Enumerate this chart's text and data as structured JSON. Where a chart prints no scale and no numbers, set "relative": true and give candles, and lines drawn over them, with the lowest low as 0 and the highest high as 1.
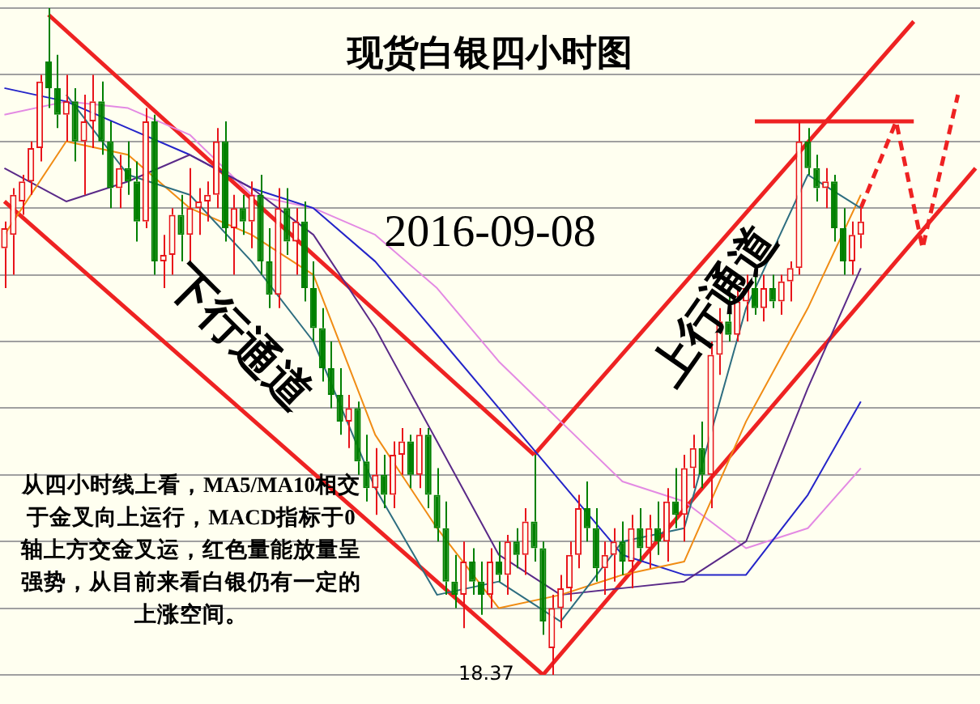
{
  "chart_data": {
    "type": "candlestick",
    "relative": true,
    "grid": true,
    "title": "现货白银四小时图",
    "subtitle": "2016-09-08",
    "annotations": [
      "下行通道",
      "上行通道",
      "从四小时线上看，MA5/MA10相交于金叉向上运行，MACD指标于0轴上方交金叉运，红色量能放量呈强势，从目前来看白银仍有一定的上涨空间。",
      "18.37"
    ],
    "categories": [
      null,
      null,
      null,
      null,
      null,
      null,
      null,
      null,
      null,
      null,
      null,
      null,
      null,
      null,
      null,
      null,
      null,
      null,
      null,
      null,
      null,
      null,
      null,
      null,
      null,
      null,
      null,
      null,
      null,
      null,
      null,
      null,
      null,
      null,
      null,
      null,
      null,
      null,
      null,
      null,
      null,
      null,
      null,
      null,
      null,
      null,
      null,
      null,
      null,
      null,
      null,
      null,
      null,
      null,
      null,
      null,
      null,
      null,
      null,
      null,
      null,
      null,
      null,
      null,
      null,
      null,
      null,
      null,
      null,
      null,
      null,
      null,
      null,
      null,
      null,
      null,
      null,
      null,
      null,
      null,
      null,
      null,
      null,
      null,
      null,
      null,
      null,
      null,
      null,
      null,
      null,
      null,
      null,
      null,
      null,
      null,
      null,
      null,
      null,
      null,
      null,
      null,
      null,
      null,
      null,
      null,
      null,
      null,
      null,
      null,
      null
    ],
    "ohlc": [
      [
        0.64,
        0.68,
        0.58,
        0.67
      ],
      [
        0.66,
        0.73,
        0.6,
        0.72
      ],
      [
        0.71,
        0.75,
        0.69,
        0.74
      ],
      [
        0.74,
        0.8,
        0.72,
        0.79
      ],
      [
        0.79,
        0.9,
        0.77,
        0.89
      ],
      [
        0.92,
        1.0,
        0.85,
        0.88
      ],
      [
        0.88,
        0.93,
        0.82,
        0.84
      ],
      [
        0.84,
        0.9,
        0.8,
        0.86
      ],
      [
        0.86,
        0.88,
        0.77,
        0.8
      ],
      [
        0.8,
        0.87,
        0.72,
        0.83
      ],
      [
        0.83,
        0.9,
        0.79,
        0.86
      ],
      [
        0.86,
        0.89,
        0.78,
        0.8
      ],
      [
        0.8,
        0.83,
        0.7,
        0.73
      ],
      [
        0.73,
        0.78,
        0.7,
        0.76
      ],
      [
        0.76,
        0.8,
        0.72,
        0.74
      ],
      [
        0.74,
        0.77,
        0.65,
        0.68
      ],
      [
        0.68,
        0.85,
        0.67,
        0.83
      ],
      [
        0.83,
        0.84,
        0.6,
        0.62
      ],
      [
        0.62,
        0.66,
        0.58,
        0.63
      ],
      [
        0.63,
        0.7,
        0.6,
        0.69
      ],
      [
        0.69,
        0.72,
        0.62,
        0.66
      ],
      [
        0.66,
        0.76,
        0.62,
        0.7
      ],
      [
        0.7,
        0.73,
        0.66,
        0.71
      ],
      [
        0.71,
        0.74,
        0.68,
        0.72
      ],
      [
        0.72,
        0.82,
        0.7,
        0.8
      ],
      [
        0.8,
        0.83,
        0.65,
        0.67
      ],
      [
        0.67,
        0.72,
        0.6,
        0.7
      ],
      [
        0.7,
        0.72,
        0.66,
        0.68
      ],
      [
        0.68,
        0.74,
        0.64,
        0.72
      ],
      [
        0.72,
        0.75,
        0.6,
        0.62
      ],
      [
        0.62,
        0.67,
        0.55,
        0.57
      ],
      [
        0.57,
        0.73,
        0.55,
        0.7
      ],
      [
        0.7,
        0.73,
        0.63,
        0.65
      ],
      [
        0.65,
        0.7,
        0.6,
        0.68
      ],
      [
        0.68,
        0.71,
        0.56,
        0.58
      ],
      [
        0.58,
        0.62,
        0.5,
        0.52
      ],
      [
        0.52,
        0.55,
        0.44,
        0.46
      ],
      [
        0.46,
        0.5,
        0.4,
        0.42
      ],
      [
        0.42,
        0.46,
        0.36,
        0.38
      ],
      [
        0.38,
        0.42,
        0.34,
        0.4
      ],
      [
        0.4,
        0.41,
        0.3,
        0.32
      ],
      [
        0.32,
        0.36,
        0.26,
        0.28
      ],
      [
        0.28,
        0.34,
        0.24,
        0.3
      ],
      [
        0.3,
        0.33,
        0.25,
        0.27
      ],
      [
        0.27,
        0.35,
        0.25,
        0.33
      ],
      [
        0.33,
        0.37,
        0.3,
        0.35
      ],
      [
        0.35,
        0.36,
        0.28,
        0.3
      ],
      [
        0.3,
        0.37,
        0.28,
        0.36
      ],
      [
        0.36,
        0.37,
        0.25,
        0.27
      ],
      [
        0.27,
        0.31,
        0.2,
        0.22
      ],
      [
        0.22,
        0.26,
        0.12,
        0.14
      ],
      [
        0.14,
        0.18,
        0.1,
        0.12
      ],
      [
        0.12,
        0.2,
        0.07,
        0.17
      ],
      [
        0.17,
        0.19,
        0.12,
        0.14
      ],
      [
        0.14,
        0.17,
        0.09,
        0.12
      ],
      [
        0.12,
        0.19,
        0.1,
        0.17
      ],
      [
        0.17,
        0.2,
        0.14,
        0.15
      ],
      [
        0.15,
        0.21,
        0.12,
        0.2
      ],
      [
        0.2,
        0.22,
        0.16,
        0.18
      ],
      [
        0.18,
        0.25,
        0.15,
        0.23
      ],
      [
        0.23,
        0.33,
        0.17,
        0.19
      ],
      [
        0.19,
        0.2,
        0.06,
        0.08
      ],
      [
        0.04,
        0.12,
        0,
        0.1
      ],
      [
        0.1,
        0.15,
        0.07,
        0.13
      ],
      [
        0.13,
        0.2,
        0.11,
        0.18
      ],
      [
        0.18,
        0.27,
        0.16,
        0.25
      ],
      [
        0.25,
        0.29,
        0.2,
        0.22
      ],
      [
        0.22,
        0.25,
        0.14,
        0.16
      ],
      [
        0.16,
        0.2,
        0.12,
        0.18
      ],
      [
        0.18,
        0.22,
        0.14,
        0.2
      ],
      [
        0.2,
        0.23,
        0.15,
        0.17
      ],
      [
        0.17,
        0.24,
        0.13,
        0.22
      ],
      [
        0.22,
        0.25,
        0.17,
        0.19
      ],
      [
        0.19,
        0.24,
        0.16,
        0.22
      ],
      [
        0.22,
        0.26,
        0.18,
        0.2
      ],
      [
        0.2,
        0.28,
        0.17,
        0.26
      ],
      [
        0.26,
        0.31,
        0.22,
        0.24
      ],
      [
        0.24,
        0.33,
        0.2,
        0.31
      ],
      [
        0.31,
        0.36,
        0.28,
        0.34
      ],
      [
        0.34,
        0.38,
        0.28,
        0.3
      ],
      [
        0.3,
        0.5,
        0.25,
        0.48
      ],
      [
        0.48,
        0.55,
        0.45,
        0.53
      ],
      [
        0.53,
        0.58,
        0.5,
        0.51
      ],
      [
        0.51,
        0.58,
        0.5,
        0.56
      ],
      [
        0.56,
        0.6,
        0.53,
        0.58
      ],
      [
        0.58,
        0.6,
        0.54,
        0.55
      ],
      [
        0.55,
        0.6,
        0.53,
        0.58
      ],
      [
        0.58,
        0.6,
        0.55,
        0.56
      ],
      [
        0.56,
        0.6,
        0.54,
        0.59
      ],
      [
        0.59,
        0.62,
        0.56,
        0.61
      ],
      [
        0.61,
        0.83,
        0.6,
        0.8
      ],
      [
        0.8,
        0.82,
        0.75,
        0.76
      ],
      [
        0.76,
        0.78,
        0.71,
        0.73
      ],
      [
        0.73,
        0.76,
        0.7,
        0.74
      ],
      [
        0.74,
        0.75,
        0.65,
        0.67
      ],
      [
        0.67,
        0.7,
        0.6,
        0.62
      ],
      [
        0.62,
        0.68,
        0.6,
        0.66
      ],
      [
        0.66,
        0.7,
        0.64,
        0.68
      ],
      null,
      null,
      null,
      null,
      null,
      null,
      null,
      null,
      null,
      null,
      null,
      null,
      null
    ],
    "colors": [
      "#e8141a",
      "#e8141a",
      "#e8141a",
      "#e8141a",
      "#e8141a",
      "#008000",
      "#008000",
      "#e8141a",
      "#008000",
      "#e8141a",
      "#e8141a",
      "#008000",
      "#008000",
      "#e8141a",
      "#008000",
      "#008000",
      "#e8141a",
      "#008000",
      "#e8141a",
      "#e8141a",
      "#008000",
      "#e8141a",
      "#e8141a",
      "#e8141a",
      "#e8141a",
      "#008000",
      "#e8141a",
      "#008000",
      "#e8141a",
      "#008000",
      "#008000",
      "#e8141a",
      "#008000",
      "#e8141a",
      "#008000",
      "#008000",
      "#008000",
      "#008000",
      "#008000",
      "#e8141a",
      "#008000",
      "#008000",
      "#e8141a",
      "#008000",
      "#e8141a",
      "#e8141a",
      "#008000",
      "#e8141a",
      "#008000",
      "#008000",
      "#008000",
      "#008000",
      "#e8141a",
      "#008000",
      "#008000",
      "#e8141a",
      "#008000",
      "#e8141a",
      "#008000",
      "#e8141a",
      "#008000",
      "#008000",
      "#e8141a",
      "#e8141a",
      "#e8141a",
      "#e8141a",
      "#008000",
      "#008000",
      "#e8141a",
      "#e8141a",
      "#008000",
      "#e8141a",
      "#008000",
      "#e8141a",
      "#008000",
      "#e8141a",
      "#008000",
      "#e8141a",
      "#e8141a",
      "#008000",
      "#e8141a",
      "#e8141a",
      "#008000",
      "#e8141a",
      "#e8141a",
      "#008000",
      "#e8141a",
      "#008000",
      "#e8141a",
      "#e8141a",
      "#e8141a",
      "#008000",
      "#008000",
      "#e8141a",
      "#008000",
      "#008000",
      "#e8141a",
      "#e8141a",
      null,
      null,
      null,
      null,
      null,
      null,
      null,
      null,
      null,
      null,
      null,
      null,
      null
    ],
    "series": [
      {
        "type": "line",
        "color": "#2e6e80",
        "values": [
          null,
          null,
          null,
          null,
          null,
          null,
          null,
          0.87,
          null,
          null,
          null,
          null,
          null,
          null,
          0.75,
          null,
          null,
          null,
          null,
          null,
          null,
          0.72,
          null,
          null,
          null,
          null,
          null,
          null,
          0.62,
          null,
          null,
          null,
          null,
          null,
          null,
          0.5,
          null,
          null,
          null,
          null,
          null,
          null,
          0.28,
          null,
          null,
          null,
          null,
          null,
          null,
          0.12,
          null,
          null,
          null,
          null,
          null,
          null,
          0.14,
          null,
          null,
          null,
          null,
          null,
          null,
          0.08,
          null,
          null,
          null,
          null,
          null,
          null,
          0.2,
          null,
          null,
          null,
          null,
          null,
          null,
          0.22,
          null,
          null,
          null,
          null,
          null,
          null,
          0.55,
          null,
          null,
          null,
          null,
          null,
          null,
          0.75,
          null,
          null,
          null,
          null,
          null,
          0.7,
          null,
          null,
          null,
          null,
          null,
          null,
          null,
          null,
          null,
          null,
          null,
          null,
          null
        ]
      },
      {
        "type": "line",
        "color": "#f08c14",
        "values": [
          0.66,
          null,
          null,
          null,
          null,
          null,
          null,
          0.8,
          null,
          null,
          null,
          null,
          null,
          null,
          0.78,
          null,
          null,
          null,
          null,
          null,
          null,
          0.7,
          null,
          null,
          null,
          null,
          null,
          null,
          0.66,
          null,
          null,
          null,
          null,
          null,
          null,
          0.6,
          null,
          null,
          null,
          null,
          null,
          null,
          0.36,
          null,
          null,
          null,
          null,
          null,
          null,
          0.22,
          null,
          null,
          null,
          null,
          null,
          null,
          0.1,
          null,
          null,
          null,
          null,
          null,
          null,
          0.12,
          null,
          null,
          null,
          null,
          null,
          null,
          0.15,
          null,
          null,
          null,
          null,
          null,
          null,
          0.17,
          null,
          null,
          null,
          null,
          null,
          null,
          0.38,
          null,
          null,
          null,
          null,
          null,
          null,
          0.55,
          null,
          null,
          null,
          null,
          null,
          0.72,
          null,
          null,
          null,
          null,
          null,
          null,
          null,
          null,
          null,
          null,
          null,
          null,
          null
        ]
      },
      {
        "type": "line",
        "color": "#5a2a88",
        "values": [
          0.76,
          null,
          null,
          null,
          null,
          null,
          null,
          0.71,
          null,
          null,
          null,
          null,
          null,
          null,
          0.74,
          null,
          null,
          null,
          null,
          null,
          null,
          0.78,
          null,
          null,
          null,
          null,
          null,
          null,
          0.73,
          null,
          null,
          null,
          null,
          null,
          null,
          0.66,
          null,
          null,
          null,
          null,
          null,
          null,
          0.52,
          null,
          null,
          null,
          null,
          null,
          null,
          0.35,
          null,
          null,
          null,
          null,
          null,
          null,
          0.18,
          null,
          null,
          null,
          null,
          null,
          null,
          0.12,
          null,
          null,
          null,
          null,
          null,
          null,
          0.13,
          null,
          null,
          null,
          null,
          null,
          null,
          0.14,
          null,
          null,
          null,
          null,
          null,
          null,
          0.2,
          null,
          null,
          null,
          null,
          null,
          null,
          0.43,
          null,
          null,
          null,
          null,
          null,
          0.61,
          null,
          null,
          null,
          null,
          null,
          null,
          null,
          null,
          null,
          null,
          null,
          null,
          null
        ]
      },
      {
        "type": "line",
        "color": "#2424c8",
        "values": [
          0.88,
          null,
          null,
          null,
          null,
          null,
          null,
          0.86,
          null,
          null,
          null,
          null,
          null,
          null,
          0.82,
          null,
          null,
          null,
          null,
          null,
          null,
          0.78,
          null,
          null,
          null,
          null,
          null,
          null,
          0.73,
          null,
          null,
          null,
          null,
          null,
          null,
          0.7,
          null,
          null,
          null,
          null,
          null,
          null,
          0.62,
          null,
          null,
          null,
          null,
          null,
          null,
          0.51,
          null,
          null,
          null,
          null,
          null,
          null,
          0.4,
          null,
          null,
          null,
          null,
          null,
          null,
          0.29,
          null,
          null,
          null,
          null,
          null,
          null,
          0.18,
          null,
          null,
          null,
          null,
          null,
          null,
          0.15,
          null,
          null,
          null,
          null,
          null,
          null,
          0.15,
          null,
          null,
          null,
          null,
          null,
          null,
          0.27,
          null,
          null,
          null,
          null,
          null,
          0.41,
          null,
          null,
          null,
          null,
          null,
          null,
          null,
          null,
          null,
          null,
          null,
          null,
          null
        ]
      },
      {
        "type": "line",
        "color": "#e38ae3",
        "values": [
          0.84,
          null,
          null,
          null,
          null,
          null,
          null,
          0.86,
          null,
          null,
          null,
          null,
          null,
          null,
          0.85,
          null,
          null,
          null,
          null,
          null,
          null,
          0.81,
          null,
          null,
          null,
          null,
          null,
          null,
          0.72,
          null,
          null,
          null,
          null,
          null,
          null,
          0.7,
          null,
          null,
          null,
          null,
          null,
          null,
          0.66,
          null,
          null,
          null,
          null,
          null,
          null,
          0.58,
          null,
          null,
          null,
          null,
          null,
          null,
          0.47,
          null,
          null,
          null,
          null,
          null,
          null,
          0.38,
          null,
          null,
          null,
          null,
          null,
          null,
          0.29,
          null,
          null,
          null,
          null,
          null,
          null,
          0.26,
          null,
          null,
          null,
          null,
          null,
          null,
          0.19,
          null,
          null,
          null,
          null,
          null,
          null,
          0.22,
          null,
          null,
          null,
          null,
          null,
          0.31,
          null,
          null,
          null,
          null,
          null,
          null,
          null,
          null,
          null,
          null,
          null,
          null,
          null
        ]
      },
      {
        "type": "line",
        "color": "#ee2222",
        "values": [
          null,
          null,
          null,
          null,
          null,
          0.99,
          null,
          null,
          null,
          null,
          null,
          null,
          null,
          null,
          null,
          null,
          null,
          null,
          null,
          null,
          null,
          null,
          null,
          null,
          null,
          null,
          null,
          null,
          null,
          null,
          null,
          null,
          null,
          null,
          null,
          null,
          null,
          null,
          null,
          null,
          null,
          null,
          null,
          null,
          null,
          null,
          null,
          null,
          null,
          null,
          null,
          null,
          null,
          null,
          null,
          null,
          null,
          null,
          null,
          null,
          0.33,
          null,
          null,
          null,
          null,
          null,
          null,
          null,
          null,
          null,
          null,
          null,
          null,
          null,
          null,
          null,
          null,
          null,
          null,
          null,
          null,
          null,
          null,
          null,
          null,
          null,
          null,
          null,
          null,
          null,
          null,
          null,
          null,
          null,
          null,
          null,
          null,
          null,
          null,
          null,
          null,
          null,
          null,
          null,
          null,
          null,
          null,
          null,
          null,
          null,
          null
        ]
      },
      {
        "type": "line",
        "color": "#ee2222",
        "values": [
          0.71,
          null,
          null,
          null,
          null,
          null,
          null,
          null,
          null,
          null,
          null,
          null,
          null,
          null,
          null,
          null,
          null,
          null,
          null,
          null,
          null,
          null,
          null,
          null,
          null,
          null,
          null,
          null,
          null,
          null,
          null,
          null,
          null,
          null,
          null,
          null,
          null,
          null,
          null,
          null,
          null,
          null,
          null,
          null,
          null,
          null,
          null,
          null,
          null,
          null,
          null,
          null,
          null,
          null,
          null,
          null,
          null,
          null,
          null,
          null,
          null,
          0,
          null,
          null,
          null,
          null,
          null,
          null,
          null,
          null,
          null,
          null,
          null,
          null,
          null,
          null,
          null,
          null,
          null,
          null,
          null,
          null,
          null,
          null,
          null,
          null,
          null,
          null,
          null,
          null,
          null,
          null,
          null,
          null,
          null,
          null,
          null,
          null,
          null,
          null,
          null,
          null,
          null,
          null,
          null,
          null,
          null,
          null,
          null,
          null,
          null
        ]
      },
      {
        "type": "line",
        "color": "#ee2222",
        "values": [
          null,
          null,
          null,
          null,
          null,
          null,
          null,
          null,
          null,
          null,
          null,
          null,
          null,
          null,
          null,
          null,
          null,
          null,
          null,
          null,
          null,
          null,
          null,
          null,
          null,
          null,
          null,
          null,
          null,
          null,
          null,
          null,
          null,
          null,
          null,
          null,
          null,
          null,
          null,
          null,
          null,
          null,
          null,
          null,
          null,
          null,
          null,
          null,
          null,
          null,
          null,
          null,
          null,
          null,
          null,
          null,
          null,
          null,
          null,
          null,
          0.33,
          null,
          null,
          null,
          null,
          null,
          null,
          null,
          null,
          null,
          null,
          null,
          null,
          null,
          null,
          null,
          null,
          null,
          null,
          null,
          null,
          null,
          null,
          null,
          null,
          null,
          null,
          null,
          null,
          null,
          null,
          null,
          null,
          null,
          null,
          null,
          null,
          null,
          null,
          null,
          null,
          null,
          null,
          0.98,
          null,
          null,
          null,
          null,
          null,
          null,
          null
        ]
      },
      {
        "type": "line",
        "color": "#ee2222",
        "values": [
          null,
          null,
          null,
          null,
          null,
          null,
          null,
          null,
          null,
          null,
          null,
          null,
          null,
          null,
          null,
          null,
          null,
          null,
          null,
          null,
          null,
          null,
          null,
          null,
          null,
          null,
          null,
          null,
          null,
          null,
          null,
          null,
          null,
          null,
          null,
          null,
          null,
          null,
          null,
          null,
          null,
          null,
          null,
          null,
          null,
          null,
          null,
          null,
          null,
          null,
          null,
          null,
          null,
          null,
          null,
          null,
          null,
          null,
          null,
          null,
          null,
          0,
          null,
          null,
          null,
          null,
          null,
          null,
          null,
          null,
          null,
          null,
          null,
          null,
          null,
          null,
          null,
          null,
          null,
          null,
          null,
          null,
          null,
          null,
          null,
          null,
          null,
          null,
          null,
          null,
          null,
          null,
          null,
          null,
          null,
          null,
          null,
          null,
          null,
          null,
          null,
          null,
          null,
          null,
          null,
          null,
          null,
          null,
          null,
          null,
          0.76
        ]
      },
      {
        "type": "line",
        "color": "#ee2222",
        "values": [
          null,
          null,
          null,
          null,
          null,
          null,
          null,
          null,
          null,
          null,
          null,
          null,
          null,
          null,
          null,
          null,
          null,
          null,
          null,
          null,
          null,
          null,
          null,
          null,
          null,
          null,
          null,
          null,
          null,
          null,
          null,
          null,
          null,
          null,
          null,
          null,
          null,
          null,
          null,
          null,
          null,
          null,
          null,
          null,
          null,
          null,
          null,
          null,
          null,
          null,
          null,
          null,
          null,
          null,
          null,
          null,
          null,
          null,
          null,
          null,
          null,
          null,
          null,
          null,
          null,
          null,
          null,
          null,
          null,
          null,
          null,
          null,
          null,
          null,
          null,
          null,
          null,
          null,
          null,
          null,
          null,
          null,
          null,
          null,
          null,
          0.83,
          null,
          null,
          null,
          null,
          null,
          null,
          null,
          null,
          null,
          null,
          null,
          null,
          null,
          null,
          null,
          null,
          null,
          0.83,
          null,
          null,
          null,
          null,
          null,
          null,
          null
        ]
      },
      {
        "type": "line",
        "color": "#ee2222",
        "line_style": "dashed",
        "values": [
          null,
          null,
          null,
          null,
          null,
          null,
          null,
          null,
          null,
          null,
          null,
          null,
          null,
          null,
          null,
          null,
          null,
          null,
          null,
          null,
          null,
          null,
          null,
          null,
          null,
          null,
          null,
          null,
          null,
          null,
          null,
          null,
          null,
          null,
          null,
          null,
          null,
          null,
          null,
          null,
          null,
          null,
          null,
          null,
          null,
          null,
          null,
          null,
          null,
          null,
          null,
          null,
          null,
          null,
          null,
          null,
          null,
          null,
          null,
          null,
          null,
          null,
          null,
          null,
          null,
          null,
          null,
          null,
          null,
          null,
          null,
          null,
          null,
          null,
          null,
          null,
          null,
          null,
          null,
          null,
          null,
          null,
          null,
          null,
          null,
          null,
          null,
          null,
          null,
          null,
          null,
          null,
          null,
          null,
          null,
          null,
          null,
          0.7,
          null,
          null,
          null,
          0.83,
          null,
          null,
          0.64,
          null,
          null,
          null,
          0.87,
          null,
          null
        ]
      }
    ]
  }
}
